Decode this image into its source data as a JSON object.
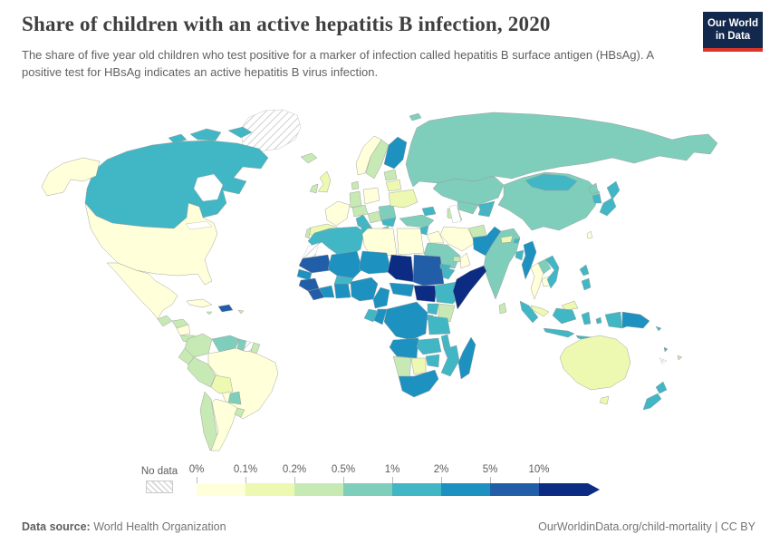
{
  "header": {
    "title": "Share of children with an active hepatitis B infection, 2020",
    "subtitle": "The share of five year old children who test positive for a marker of infection called hepatitis B surface antigen (HBsAg). A positive test for HBsAg indicates an active hepatitis B virus infection.",
    "logo_line1": "Our World",
    "logo_line2": "in Data",
    "logo_bg": "#12284c",
    "logo_accent": "#d8352b"
  },
  "footer": {
    "source_label": "Data source:",
    "source_value": " World Health Organization",
    "link": "OurWorldinData.org/child-mortality | CC BY"
  },
  "chart_data": {
    "type": "choropleth_map",
    "title": "Share of children with an active hepatitis B infection, 2020",
    "year": 2020,
    "unit": "%",
    "legend": {
      "no_data_label": "No data",
      "tick_labels": [
        "0%",
        "0.1%",
        "0.2%",
        "0.5%",
        "1%",
        "2%",
        "5%",
        "10%"
      ],
      "bucket_ranges": [
        "0-0.1%",
        "0.1-0.2%",
        "0.2-0.5%",
        "0.5-1%",
        "1-2%",
        "2-5%",
        "5-10%",
        ">10%"
      ],
      "colors": [
        "#ffffd9",
        "#edf8b1",
        "#c7e9b4",
        "#7fcdbb",
        "#41b6c4",
        "#1d91c0",
        "#225ea8",
        "#0c2c84"
      ],
      "no_data_pattern": "diagonal-hatch"
    },
    "countries": {
      "Greenland": -1,
      "Western Sahara": -1,
      "Suriname": -1,
      "New Caledonia": -1,
      "United States": 0,
      "Alaska": 0,
      "Mexico": 0,
      "Cuba": 0,
      "Nicaragua": 0,
      "Brazil": 0,
      "Argentina": 0,
      "France": 0,
      "Poland": 0,
      "Norway": 0,
      "Iran": 0,
      "Iraq": 0,
      "Oman": 0,
      "Thailand": 0,
      "Cambodia": 0,
      "Libya": 0,
      "Egypt": 0,
      "Taiwan": 0,
      "Bolivia": 1,
      "United Kingdom": 1,
      "Spain": 1,
      "Ukraine": 1,
      "Belarus": 1,
      "Nepal": 1,
      "Malaysia": 1,
      "Malaysia Borneo": 1,
      "Australia": 1,
      "Tasmania": 1,
      "Botswana": 1,
      "Guatemala": 2,
      "Honduras": 2,
      "Panama": 2,
      "Colombia": 2,
      "Ecuador": 2,
      "Peru": 2,
      "Chile": 2,
      "Uruguay": 2,
      "French Guiana": 2,
      "Puerto Rico": 2,
      "Jamaica": 2,
      "Iceland": 2,
      "Ireland": 2,
      "Portugal": 2,
      "Germany": 2,
      "Denmark": 2,
      "Sweden": 2,
      "Baltics": 2,
      "Central Europe": 2,
      "Balkans": 2,
      "Turkmenistan": 2,
      "Afghanistan": 2,
      "Sri Lanka": 2,
      "Kenya": 2,
      "Namibia": 2,
      "Jordan": 2,
      "UAE": 2,
      "Fiji": 2,
      "Venezuela": 3,
      "Guyana": 3,
      "Paraguay": 3,
      "Romania": 3,
      "Greece": 3,
      "Turkey": 3,
      "Russia": 3,
      "Svalbard": 3,
      "Kazakhstan": 3,
      "Uzbekistan": 3,
      "China": 3,
      "North Korea": 3,
      "India": 3,
      "Laos": 3,
      "Saudi Arabia": 3,
      "Canada": 4,
      "Arctic Islands A": 4,
      "Arctic Islands B": 4,
      "Arctic Islands C": 4,
      "Italy": 4,
      "Bulgaria": 4,
      "Caucasus": 4,
      "Kyrgyzstan": 4,
      "Tajikistan": 4,
      "Syria": 4,
      "Yemen": 4,
      "Mongolia": 4,
      "Japan": 4,
      "Japan South": 4,
      "South Korea": 4,
      "Vietnam": 4,
      "Bangladesh": 4,
      "Bhutan": 4,
      "Philippines": 4,
      "Philippines South": 4,
      "Sumatra": 4,
      "Borneo": 4,
      "Java": 4,
      "Sulawesi": 4,
      "Lesser Sunda": 4,
      "Maluku": 4,
      "West Papua": 4,
      "Solomon Islands": 4,
      "Vanuatu": 4,
      "New Zealand North": 4,
      "New Zealand South": 4,
      "Morocco": 4,
      "Algeria": 4,
      "Tunisia": 4,
      "Burkina Faso": 4,
      "Eritrea": 4,
      "Ethiopia": 4,
      "Uganda": 4,
      "Rwanda Burundi": 4,
      "Gabon": 4,
      "Tanzania": 4,
      "Zambia": 4,
      "Malawi": 4,
      "Mozambique": 4,
      "Zimbabwe": 4,
      "Finland": 5,
      "Pakistan": 5,
      "Myanmar": 5,
      "Papua New Guinea": 5,
      "Mali": 5,
      "Niger": 5,
      "Senegal": 5,
      "Ivory Coast": 5,
      "Ghana": 5,
      "Nigeria": 5,
      "Cameroon": 5,
      "Central African Republic": 5,
      "DR Congo": 5,
      "Congo": 5,
      "Angola": 5,
      "South Africa": 5,
      "Madagascar": 5,
      "Haiti": 6,
      "Mauritania": 6,
      "Guinea": 6,
      "Sierra Leone": 6,
      "Sudan": 6,
      "Chad": 7,
      "South Sudan": 7,
      "Somalia": 7
    }
  }
}
